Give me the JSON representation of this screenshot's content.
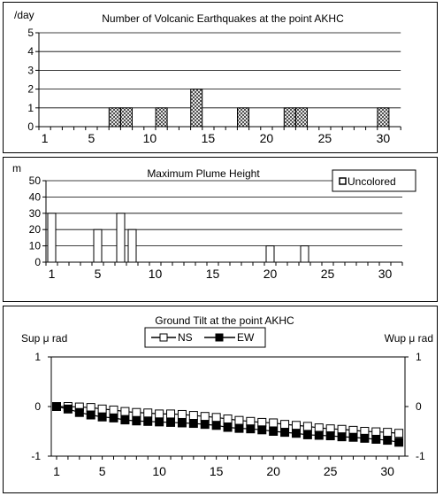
{
  "chart_data": [
    {
      "type": "bar",
      "title": "Number of Volcanic Earthquakes at the point AKHC",
      "unit": "/day",
      "x": [
        1,
        2,
        3,
        4,
        5,
        6,
        7,
        8,
        9,
        10,
        11,
        12,
        13,
        14,
        15,
        16,
        17,
        18,
        19,
        20,
        21,
        22,
        23,
        24,
        25,
        26,
        27,
        28,
        29,
        30,
        31
      ],
      "values": [
        0,
        0,
        0,
        0,
        0,
        0,
        1,
        1,
        0,
        0,
        1,
        0,
        0,
        2,
        0,
        0,
        0,
        1,
        0,
        0,
        0,
        1,
        1,
        0,
        0,
        0,
        0,
        0,
        0,
        1,
        0
      ],
      "xticks": [
        1,
        5,
        10,
        15,
        20,
        25,
        30
      ],
      "ylim": [
        0,
        5
      ],
      "yticks": [
        0,
        1,
        2,
        3,
        4,
        5
      ],
      "grid": true,
      "bar_fill": "checkered"
    },
    {
      "type": "bar",
      "title": "Maximum Plume Height",
      "unit": "m",
      "legend": "Uncolored",
      "legend_position": "top-right",
      "x": [
        1,
        2,
        3,
        4,
        5,
        6,
        7,
        8,
        9,
        10,
        11,
        12,
        13,
        14,
        15,
        16,
        17,
        18,
        19,
        20,
        21,
        22,
        23,
        24,
        25,
        26,
        27,
        28,
        29,
        30,
        31
      ],
      "values": [
        30,
        0,
        0,
        0,
        20,
        0,
        30,
        20,
        0,
        0,
        0,
        0,
        0,
        0,
        0,
        0,
        0,
        0,
        0,
        10,
        0,
        0,
        10,
        0,
        0,
        0,
        0,
        0,
        0,
        0,
        0
      ],
      "xticks": [
        1,
        5,
        10,
        15,
        20,
        25,
        30
      ],
      "ylim": [
        0,
        50
      ],
      "yticks": [
        0,
        10,
        20,
        30,
        40,
        50
      ],
      "grid": true,
      "bar_fill": "#ffffff"
    },
    {
      "type": "line",
      "title": "Ground Tilt at the point AKHC",
      "ylabel_left": "Sup μ rad",
      "ylabel_right": "Wup μ rad",
      "legend_position": "top-center",
      "x": [
        1,
        2,
        3,
        4,
        5,
        6,
        7,
        8,
        9,
        10,
        11,
        12,
        13,
        14,
        15,
        16,
        17,
        18,
        19,
        20,
        21,
        22,
        23,
        24,
        25,
        26,
        27,
        28,
        29,
        30,
        31
      ],
      "xticks": [
        1,
        5,
        10,
        15,
        20,
        25,
        30
      ],
      "ylim": [
        -1,
        1
      ],
      "yticks": [
        -1,
        0,
        1
      ],
      "grid": false,
      "series": [
        {
          "name": "NS",
          "marker": "open-square",
          "values": [
            0,
            0,
            -0.01,
            -0.02,
            -0.05,
            -0.07,
            -0.1,
            -0.12,
            -0.13,
            -0.15,
            -0.15,
            -0.16,
            -0.18,
            -0.2,
            -0.22,
            -0.25,
            -0.28,
            -0.3,
            -0.32,
            -0.33,
            -0.36,
            -0.38,
            -0.4,
            -0.43,
            -0.45,
            -0.46,
            -0.48,
            -0.5,
            -0.51,
            -0.52,
            -0.54
          ]
        },
        {
          "name": "EW",
          "marker": "filled-square",
          "values": [
            0,
            -0.05,
            -0.12,
            -0.17,
            -0.21,
            -0.23,
            -0.27,
            -0.29,
            -0.3,
            -0.31,
            -0.32,
            -0.33,
            -0.34,
            -0.36,
            -0.38,
            -0.42,
            -0.44,
            -0.45,
            -0.47,
            -0.5,
            -0.52,
            -0.54,
            -0.57,
            -0.58,
            -0.59,
            -0.61,
            -0.62,
            -0.64,
            -0.66,
            -0.68,
            -0.72
          ]
        }
      ]
    }
  ]
}
